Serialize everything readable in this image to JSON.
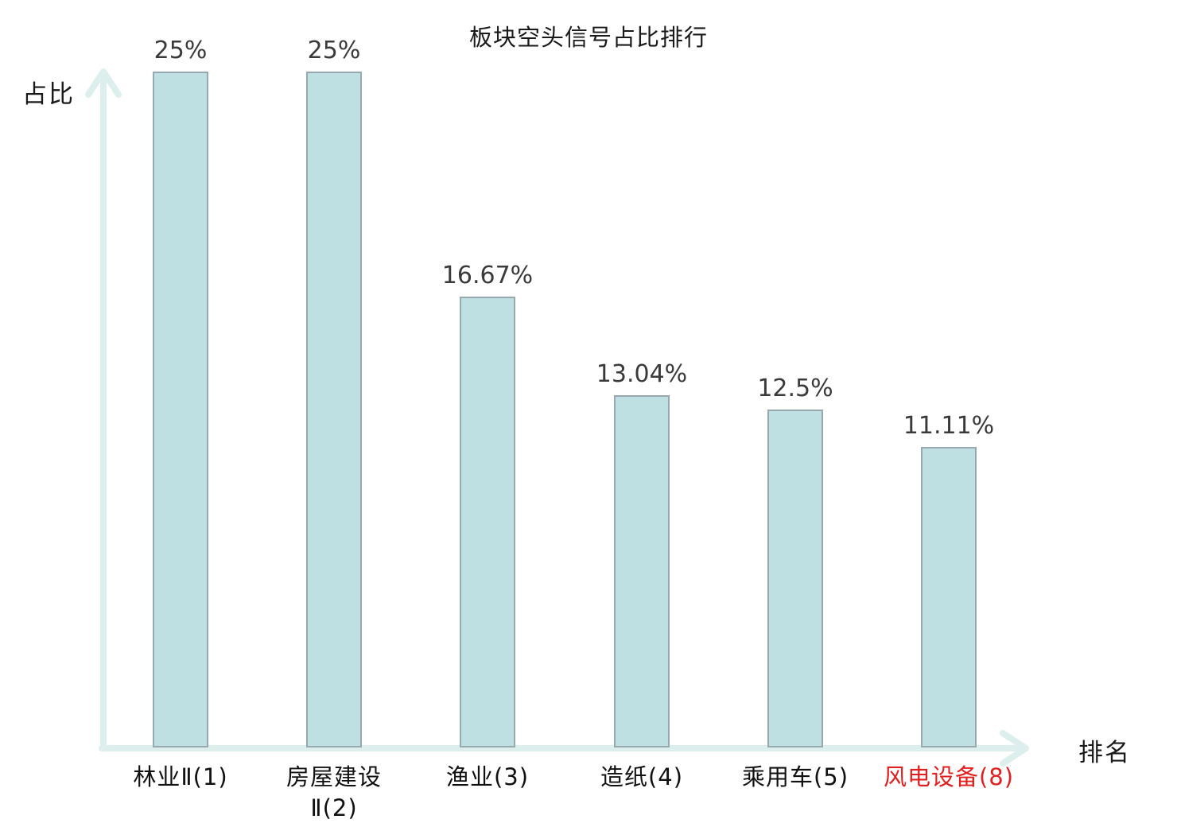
{
  "page": {
    "background": "#ffffff"
  },
  "chart_data": {
    "type": "bar",
    "title": "板块空头信号占比排行",
    "xlabel": "排名",
    "ylabel": "占比",
    "categories": [
      "林业Ⅱ(1)",
      "房屋建设\nⅡ(2)",
      "渔业(3)",
      "造纸(4)",
      "乘用车(5)",
      "风电设备(8)"
    ],
    "values": [
      25,
      25,
      16.67,
      13.04,
      12.5,
      11.11
    ],
    "value_labels": [
      "25%",
      "25%",
      "16.67%",
      "13.04%",
      "12.5%",
      "11.11%"
    ],
    "highlight_index": 5,
    "ylim": [
      0,
      25
    ],
    "grid": false,
    "legend": false,
    "colors": {
      "bar_fill": "#bfe0e3",
      "bar_border": "#97a8ae",
      "axis": "#ddefec",
      "value_text": "#3a3a3a",
      "category_text": "#111111",
      "highlight_text": "#e01f1f",
      "title_text": "#1a1a1a"
    }
  }
}
